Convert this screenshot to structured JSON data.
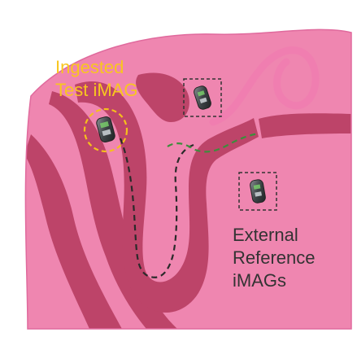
{
  "labels": {
    "ingested_line1": "Ingested",
    "ingested_line2": "Test iMAG",
    "external_line1": "External",
    "external_line2": "Reference",
    "external_line3": "iMAGs"
  },
  "colors": {
    "background_tissue": "#ef86b0",
    "tissue_outline": "#e06a9d",
    "intestine": "#bd4469",
    "intestine_inner": "#d46089",
    "tail_loop": "#f07eb0",
    "path_dashed": "#2a2a2a",
    "path_green": "#3c8e3c",
    "ingested_highlight": "#f6bf1c",
    "ingested_text": "#f8c61f",
    "external_text": "#333333",
    "reference_box": "#333333"
  },
  "icons": {
    "device": "imag-capsule-icon"
  }
}
